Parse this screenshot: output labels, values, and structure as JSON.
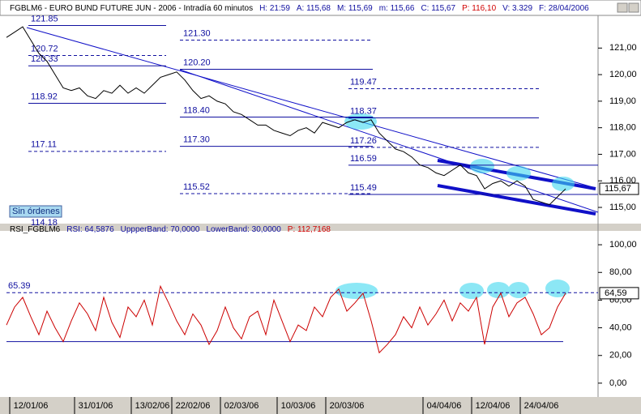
{
  "chart_data": [
    {
      "type": "line",
      "title": "FGBLM6 - EURO BUND FUTURE  JUN - 2006 - Intradía 60 minutos",
      "info": [
        "H: 21:59",
        "A: 115,68",
        "M: 115,69",
        "m: 115,66",
        "C: 115,67",
        "P: 116,10",
        "V: 3.329",
        "F: 28/04/2006"
      ],
      "series": [
        {
          "name": "FGBLM6",
          "color": "#000000",
          "values": [
            121.4,
            121.6,
            121.8,
            121.3,
            120.8,
            120.5,
            120.0,
            119.5,
            119.4,
            119.5,
            119.2,
            119.1,
            119.4,
            119.3,
            119.6,
            119.3,
            119.5,
            119.3,
            119.6,
            119.9,
            120.0,
            120.1,
            119.8,
            119.4,
            119.1,
            119.2,
            119.0,
            118.9,
            118.6,
            118.5,
            118.3,
            118.1,
            118.1,
            117.9,
            117.8,
            117.7,
            117.9,
            118.0,
            117.8,
            118.2,
            118.1,
            118.0,
            118.2,
            118.3,
            118.2,
            118.3,
            117.8,
            117.5,
            117.2,
            117.1,
            116.9,
            116.6,
            116.5,
            116.3,
            116.2,
            116.4,
            116.6,
            116.3,
            116.2,
            115.7,
            115.9,
            116.0,
            115.8,
            116.0,
            115.8,
            115.3,
            115.2,
            115.1,
            115.4,
            115.7
          ]
        }
      ],
      "last_label": "115,67",
      "order_label": "Sin órdenes",
      "levels": [
        {
          "value": 121.85,
          "label": "121.85"
        },
        {
          "value": 121.3,
          "label": "121.30"
        },
        {
          "value": 120.72,
          "label": "120.72"
        },
        {
          "value": 120.33,
          "label": "120.33"
        },
        {
          "value": 120.2,
          "label": "120.20"
        },
        {
          "value": 119.47,
          "label": "119.47"
        },
        {
          "value": 118.92,
          "label": "118.92"
        },
        {
          "value": 118.4,
          "label": "118.40"
        },
        {
          "value": 118.37,
          "label": "118.37"
        },
        {
          "value": 117.3,
          "label": "117.30"
        },
        {
          "value": 117.26,
          "label": "117.26"
        },
        {
          "value": 117.11,
          "label": "117.11"
        },
        {
          "value": 116.59,
          "label": "116.59"
        },
        {
          "value": 115.52,
          "label": "115.52"
        },
        {
          "value": 115.49,
          "label": "115.49"
        },
        {
          "value": 114.18,
          "label": "114.18"
        }
      ],
      "xlim": [
        0,
        73
      ],
      "ylim": [
        114.39,
        122.23
      ],
      "yticks": [
        {
          "value": 115,
          "label": "115,00"
        },
        {
          "value": 116,
          "label": "116,00"
        },
        {
          "value": 117,
          "label": "117,00"
        },
        {
          "value": 118,
          "label": "118,00"
        },
        {
          "value": 119,
          "label": "119,00"
        },
        {
          "value": 120,
          "label": "120,00"
        },
        {
          "value": 121,
          "label": "121,00"
        }
      ]
    },
    {
      "type": "line",
      "title": "RSI_FGBLM6",
      "info": [
        "RSI: 64,5876",
        "UppperBand: 70,0000",
        "LowerBand: 30,0000",
        "P: 112,7168"
      ],
      "series": [
        {
          "name": "RSI",
          "color": "#cc0000",
          "values": [
            42,
            55,
            62,
            48,
            35,
            52,
            40,
            30,
            45,
            58,
            50,
            38,
            62,
            44,
            33,
            55,
            48,
            60,
            42,
            70,
            58,
            45,
            35,
            50,
            42,
            28,
            38,
            55,
            40,
            32,
            48,
            52,
            35,
            60,
            45,
            30,
            42,
            38,
            55,
            48,
            62,
            68,
            52,
            58,
            65,
            45,
            22,
            28,
            35,
            48,
            40,
            55,
            42,
            50,
            60,
            45,
            58,
            52,
            62,
            28,
            55,
            65,
            48,
            58,
            62,
            50,
            35,
            40,
            55,
            65
          ]
        }
      ],
      "last_label": "64,59",
      "levels": [
        {
          "value": 65.39,
          "label": "65.39"
        },
        {
          "value": 30
        }
      ],
      "xlim": [
        0,
        73
      ],
      "ylim": [
        -10,
        110
      ],
      "yticks": [
        {
          "value": 0,
          "label": "0,00"
        },
        {
          "value": 20,
          "label": "20,00"
        },
        {
          "value": 40,
          "label": "40,00"
        },
        {
          "value": 60,
          "label": "60,00"
        },
        {
          "value": 80,
          "label": "80,00"
        },
        {
          "value": 100,
          "label": "100,00"
        }
      ],
      "xticks": [
        {
          "value": 3,
          "label": "12/01/06"
        },
        {
          "value": 11,
          "label": "31/01/06"
        },
        {
          "value": 18,
          "label": "13/02/06"
        },
        {
          "value": 23,
          "label": "22/02/06"
        },
        {
          "value": 29,
          "label": "02/03/06"
        },
        {
          "value": 36,
          "label": "10/03/06"
        },
        {
          "value": 42,
          "label": "20/03/06"
        },
        {
          "value": 54,
          "label": "04/04/06"
        },
        {
          "value": 60,
          "label": "12/04/06"
        },
        {
          "value": 66,
          "label": "24/04/06"
        }
      ]
    }
  ]
}
